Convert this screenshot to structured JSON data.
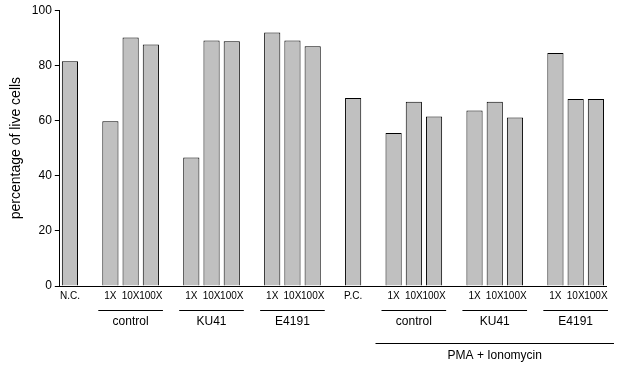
{
  "chart_data": {
    "type": "bar",
    "y_label": "percentage of live cells",
    "ylim": [
      0,
      100
    ],
    "yticks": [
      0,
      20,
      40,
      60,
      80,
      100
    ],
    "grid": false,
    "color": "#c0c0c0",
    "sections": [
      {
        "groups": [
          {
            "categories": [
              "N.C."
            ],
            "values": [
              81.5
            ]
          },
          {
            "name": "control",
            "categories": [
              "1X",
              "10X",
              "100X"
            ],
            "values": [
              59.7,
              90.1,
              87.6
            ]
          },
          {
            "name": "KU41",
            "categories": [
              "1X",
              "10X",
              "100X"
            ],
            "values": [
              46.6,
              89.0,
              88.7
            ]
          },
          {
            "name": "E4191",
            "categories": [
              "1X",
              "10X",
              "100X"
            ],
            "values": [
              91.9,
              89.0,
              86.9
            ]
          },
          {
            "categories": [
              "P.C."
            ],
            "values": [
              68.2
            ]
          }
        ]
      },
      {
        "name": "PMA + Ionomycin",
        "groups": [
          {
            "name": "control",
            "categories": [
              "1X",
              "10X",
              "100X"
            ],
            "values": [
              55.5,
              66.8,
              61.5
            ]
          },
          {
            "name": "KU41",
            "categories": [
              "1X",
              "10X",
              "100X"
            ],
            "values": [
              63.6,
              66.8,
              61.1
            ]
          },
          {
            "name": "E4191",
            "categories": [
              "1X",
              "10X",
              "100X"
            ],
            "values": [
              84.5,
              67.8,
              67.8
            ]
          }
        ]
      }
    ]
  }
}
